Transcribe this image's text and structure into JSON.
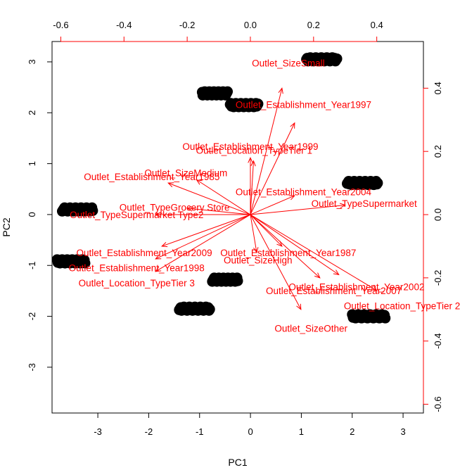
{
  "chart_data": {
    "type": "scatter",
    "subtype": "biplot",
    "xlabel": "PC1",
    "ylabel": "PC2",
    "xlim": [
      -3.9,
      3.4
    ],
    "ylim": [
      -3.9,
      3.4
    ],
    "xticks": [
      -3,
      -2,
      -1,
      0,
      1,
      2,
      3
    ],
    "yticks": [
      -3,
      -2,
      -1,
      0,
      1,
      2,
      3
    ],
    "loading_axis": {
      "range": [
        -0.6277,
        0.5477
      ],
      "ticks": [
        -0.6,
        -0.4,
        -0.2,
        0.0,
        0.2,
        0.4
      ],
      "color": "#ff0000"
    },
    "point_color": "#000000",
    "arrow_color": "#ff0000",
    "score_clusters": [
      {
        "x_min": -3.7,
        "x_max": -3.1,
        "y": 0.1
      },
      {
        "x_min": -3.8,
        "x_max": -3.25,
        "y": -0.92
      },
      {
        "x_min": -0.95,
        "x_max": -0.45,
        "y": 2.38
      },
      {
        "x_min": -0.4,
        "x_max": 0.15,
        "y": 2.15
      },
      {
        "x_min": 1.1,
        "x_max": 1.7,
        "y": 3.05
      },
      {
        "x_min": 1.9,
        "x_max": 2.5,
        "y": 0.62
      },
      {
        "x_min": -1.4,
        "x_max": -0.8,
        "y": -1.85
      },
      {
        "x_min": -0.75,
        "x_max": -0.25,
        "y": -1.28
      },
      {
        "x_min": 2.0,
        "x_max": 2.65,
        "y": -2.0
      }
    ],
    "loadings": [
      {
        "label": "Outlet_Location_TypeTier 1",
        "x": 0.01,
        "y": 0.17
      },
      {
        "label": "Outlet_SizeSmall",
        "x": 0.1,
        "y": 0.4
      },
      {
        "label": "Outlet_Establishment_Year1997",
        "x": 0.14,
        "y": 0.29
      },
      {
        "label": "Outlet_Establishment_Year1999",
        "x": 0.0,
        "y": 0.18
      },
      {
        "label": "Outlet_Establishment_Year1985",
        "x": -0.26,
        "y": 0.1
      },
      {
        "label": "Outlet_SizeMedium",
        "x": -0.17,
        "y": 0.11
      },
      {
        "label": "Outlet_Establishment_Year2004",
        "x": 0.14,
        "y": 0.06
      },
      {
        "label": "Outlet_TypeSupermarket",
        "x": 0.3,
        "y": 0.03
      },
      {
        "label": "Outlet_TypeGrocery Store",
        "x": -0.2,
        "y": 0.02
      },
      {
        "label": "Outlet_TypeSupermarket Type2",
        "x": -0.3,
        "y": 0.0
      },
      {
        "label": "Outlet_Establishment_Year2009",
        "x": -0.28,
        "y": -0.1
      },
      {
        "label": "Outlet_Establishment_Year1987",
        "x": 0.1,
        "y": -0.1
      },
      {
        "label": "Outlet_SizeHigh",
        "x": 0.02,
        "y": -0.12
      },
      {
        "label": "Outlet_Establishment_Year1998",
        "x": -0.3,
        "y": -0.14
      },
      {
        "label": "Outlet_Location_TypeTier 3",
        "x": -0.3,
        "y": -0.18
      },
      {
        "label": "Outlet_Establishment_Year2002",
        "x": 0.28,
        "y": -0.19
      },
      {
        "label": "Outlet_Establishment_Year2007",
        "x": 0.22,
        "y": -0.2
      },
      {
        "label": "Outlet_Location_TypeTier 2",
        "x": 0.4,
        "y": -0.24
      },
      {
        "label": "Outlet_SizeOther",
        "x": 0.16,
        "y": -0.3
      }
    ]
  }
}
